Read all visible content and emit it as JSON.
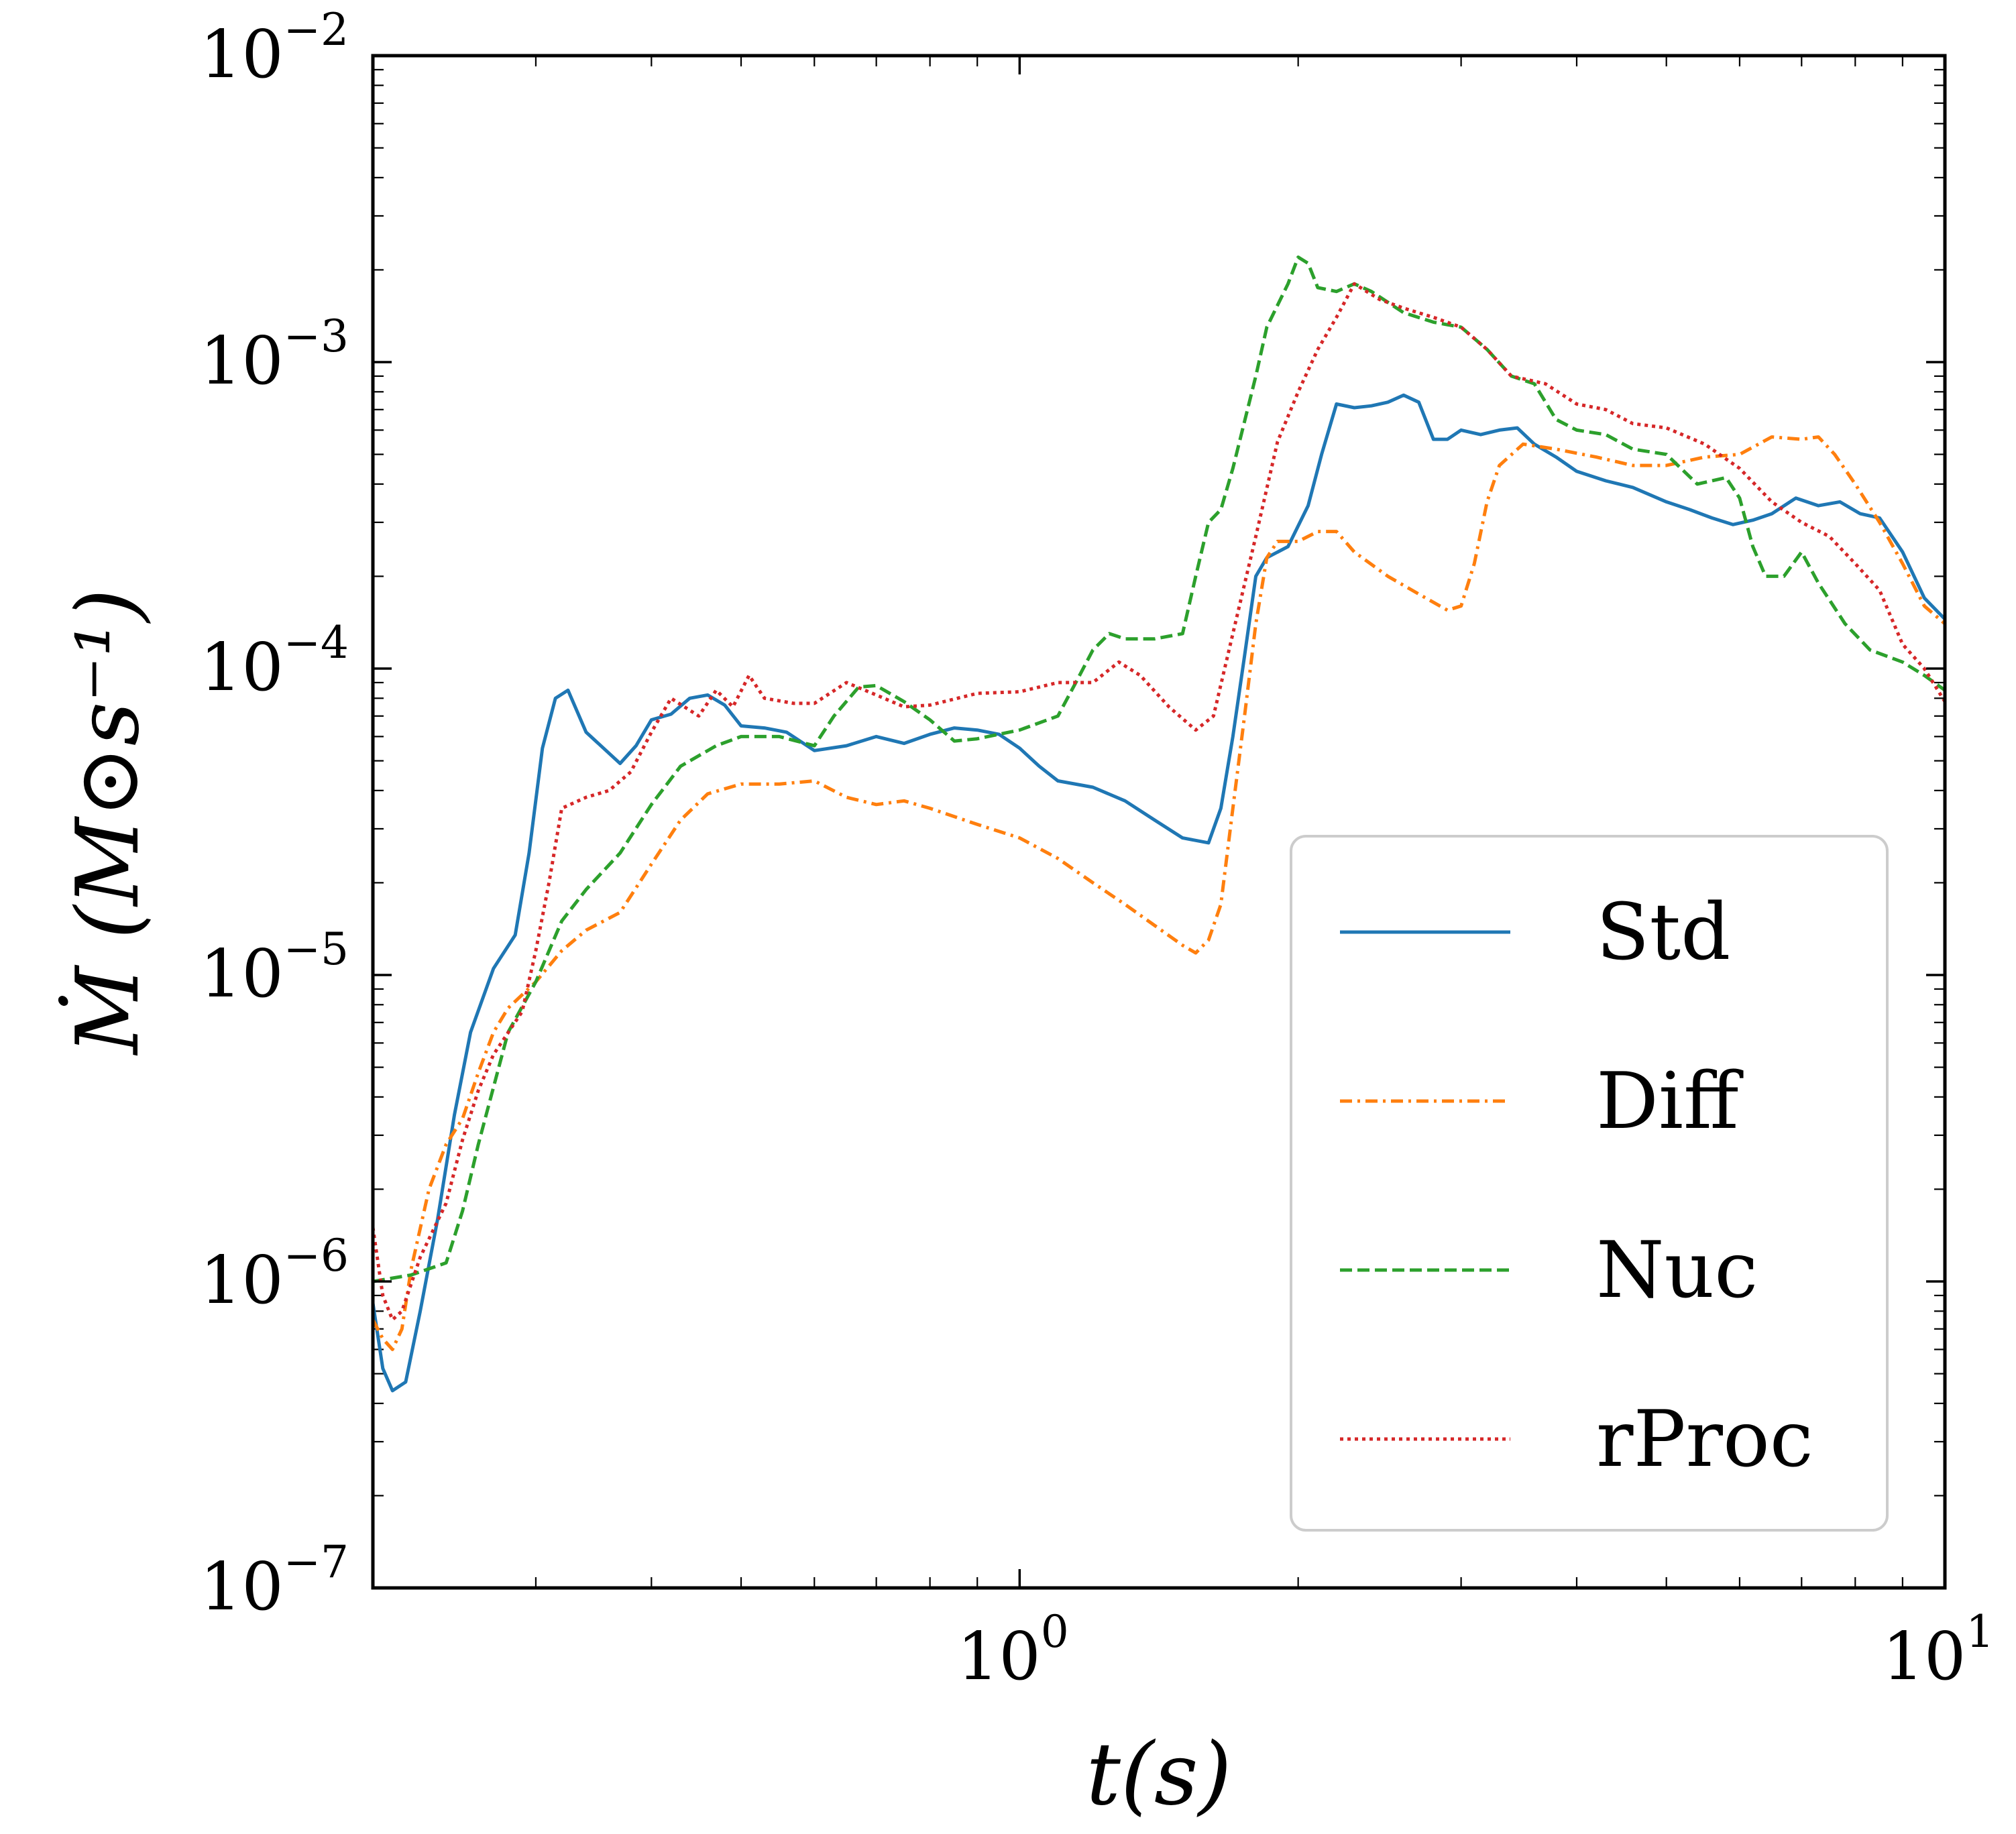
{
  "chart_data": {
    "type": "line",
    "xlabel": "t(s)",
    "ylabel": "Ṁ (M⊙s⁻¹)",
    "xscale": "log",
    "yscale": "log",
    "xlim": [
      0.2,
      10
    ],
    "ylim": [
      1e-07,
      0.01
    ],
    "x_ticks": [
      {
        "base": "10",
        "exp": "0",
        "value": 1
      },
      {
        "base": "10",
        "exp": "1",
        "value": 10
      }
    ],
    "y_ticks": [
      {
        "base": "10",
        "exp": "−7",
        "value": 1e-07
      },
      {
        "base": "10",
        "exp": "−6",
        "value": 1e-06
      },
      {
        "base": "10",
        "exp": "−5",
        "value": 1e-05
      },
      {
        "base": "10",
        "exp": "−4",
        "value": 0.0001
      },
      {
        "base": "10",
        "exp": "−3",
        "value": 0.001
      },
      {
        "base": "10",
        "exp": "−2",
        "value": 0.01
      }
    ],
    "grid": false,
    "legend_position": "lower-right",
    "series": [
      {
        "name": "Std",
        "color": "#1f77b4",
        "style": "solid",
        "points": [
          [
            0.2,
            8.5e-07
          ],
          [
            0.205,
            5.2e-07
          ],
          [
            0.21,
            4.4e-07
          ],
          [
            0.217,
            4.7e-07
          ],
          [
            0.225,
            8e-07
          ],
          [
            0.235,
            1.6e-06
          ],
          [
            0.245,
            3.5e-06
          ],
          [
            0.255,
            6.5e-06
          ],
          [
            0.27,
            1.05e-05
          ],
          [
            0.285,
            1.35e-05
          ],
          [
            0.295,
            2.5e-05
          ],
          [
            0.305,
            5.5e-05
          ],
          [
            0.315,
            8e-05
          ],
          [
            0.325,
            8.5e-05
          ],
          [
            0.34,
            6.2e-05
          ],
          [
            0.355,
            5.5e-05
          ],
          [
            0.37,
            4.9e-05
          ],
          [
            0.385,
            5.6e-05
          ],
          [
            0.4,
            6.8e-05
          ],
          [
            0.42,
            7.1e-05
          ],
          [
            0.44,
            8e-05
          ],
          [
            0.46,
            8.2e-05
          ],
          [
            0.48,
            7.6e-05
          ],
          [
            0.5,
            6.5e-05
          ],
          [
            0.53,
            6.4e-05
          ],
          [
            0.56,
            6.2e-05
          ],
          [
            0.6,
            5.4e-05
          ],
          [
            0.65,
            5.6e-05
          ],
          [
            0.7,
            6e-05
          ],
          [
            0.75,
            5.7e-05
          ],
          [
            0.8,
            6.1e-05
          ],
          [
            0.85,
            6.4e-05
          ],
          [
            0.9,
            6.3e-05
          ],
          [
            0.95,
            6.1e-05
          ],
          [
            1.0,
            5.5e-05
          ],
          [
            1.05,
            4.8e-05
          ],
          [
            1.1,
            4.3e-05
          ],
          [
            1.2,
            4.1e-05
          ],
          [
            1.3,
            3.7e-05
          ],
          [
            1.4,
            3.2e-05
          ],
          [
            1.5,
            2.8e-05
          ],
          [
            1.6,
            2.7e-05
          ],
          [
            1.65,
            3.5e-05
          ],
          [
            1.7,
            6e-05
          ],
          [
            1.75,
            0.00011
          ],
          [
            1.8,
            0.0002
          ],
          [
            1.85,
            0.00023
          ],
          [
            1.95,
            0.00025
          ],
          [
            2.05,
            0.00034
          ],
          [
            2.12,
            0.0005
          ],
          [
            2.2,
            0.00073
          ],
          [
            2.3,
            0.00071
          ],
          [
            2.4,
            0.00072
          ],
          [
            2.5,
            0.00074
          ],
          [
            2.6,
            0.00078
          ],
          [
            2.7,
            0.00074
          ],
          [
            2.8,
            0.00056
          ],
          [
            2.9,
            0.00056
          ],
          [
            3.0,
            0.0006
          ],
          [
            3.15,
            0.00058
          ],
          [
            3.3,
            0.0006
          ],
          [
            3.45,
            0.00061
          ],
          [
            3.6,
            0.00054
          ],
          [
            3.8,
            0.00049
          ],
          [
            4.0,
            0.00044
          ],
          [
            4.3,
            0.00041
          ],
          [
            4.6,
            0.00039
          ],
          [
            5.0,
            0.00035
          ],
          [
            5.3,
            0.00033
          ],
          [
            5.6,
            0.00031
          ],
          [
            5.9,
            0.000295
          ],
          [
            6.2,
            0.000305
          ],
          [
            6.5,
            0.00032
          ],
          [
            6.9,
            0.00036
          ],
          [
            7.3,
            0.00034
          ],
          [
            7.7,
            0.00035
          ],
          [
            8.1,
            0.00032
          ],
          [
            8.5,
            0.00031
          ],
          [
            9.0,
            0.00024
          ],
          [
            9.5,
            0.00017
          ],
          [
            10.0,
            0.000145
          ]
        ]
      },
      {
        "name": "Diff",
        "color": "#ff7f0e",
        "style": "dashdot",
        "points": [
          [
            0.2,
            7.5e-07
          ],
          [
            0.205,
            6.5e-07
          ],
          [
            0.21,
            6e-07
          ],
          [
            0.215,
            7e-07
          ],
          [
            0.22,
            1.1e-06
          ],
          [
            0.23,
            2e-06
          ],
          [
            0.24,
            2.8e-06
          ],
          [
            0.25,
            3.4e-06
          ],
          [
            0.26,
            4.8e-06
          ],
          [
            0.27,
            6.5e-06
          ],
          [
            0.28,
            7.8e-06
          ],
          [
            0.3,
            9.5e-06
          ],
          [
            0.32,
            1.2e-05
          ],
          [
            0.34,
            1.4e-05
          ],
          [
            0.37,
            1.6e-05
          ],
          [
            0.4,
            2.3e-05
          ],
          [
            0.43,
            3.2e-05
          ],
          [
            0.46,
            3.9e-05
          ],
          [
            0.5,
            4.2e-05
          ],
          [
            0.55,
            4.2e-05
          ],
          [
            0.6,
            4.3e-05
          ],
          [
            0.65,
            3.8e-05
          ],
          [
            0.7,
            3.6e-05
          ],
          [
            0.75,
            3.7e-05
          ],
          [
            0.8,
            3.5e-05
          ],
          [
            0.9,
            3.1e-05
          ],
          [
            1.0,
            2.8e-05
          ],
          [
            1.1,
            2.4e-05
          ],
          [
            1.2,
            2e-05
          ],
          [
            1.3,
            1.7e-05
          ],
          [
            1.4,
            1.45e-05
          ],
          [
            1.5,
            1.25e-05
          ],
          [
            1.55,
            1.18e-05
          ],
          [
            1.6,
            1.3e-05
          ],
          [
            1.65,
            1.7e-05
          ],
          [
            1.7,
            3.5e-05
          ],
          [
            1.75,
            7e-05
          ],
          [
            1.8,
            0.00014
          ],
          [
            1.85,
            0.00023
          ],
          [
            1.9,
            0.00026
          ],
          [
            2.0,
            0.00026
          ],
          [
            2.1,
            0.00028
          ],
          [
            2.2,
            0.00028
          ],
          [
            2.3,
            0.00024
          ],
          [
            2.5,
            0.0002
          ],
          [
            2.7,
            0.000175
          ],
          [
            2.9,
            0.000155
          ],
          [
            3.0,
            0.00016
          ],
          [
            3.1,
            0.00022
          ],
          [
            3.2,
            0.00035
          ],
          [
            3.3,
            0.00046
          ],
          [
            3.5,
            0.00054
          ],
          [
            3.8,
            0.00052
          ],
          [
            4.2,
            0.00049
          ],
          [
            4.6,
            0.00046
          ],
          [
            5.0,
            0.00046
          ],
          [
            5.5,
            0.00049
          ],
          [
            6.0,
            0.0005
          ],
          [
            6.5,
            0.00057
          ],
          [
            7.0,
            0.00056
          ],
          [
            7.3,
            0.00057
          ],
          [
            7.6,
            0.0005
          ],
          [
            8.0,
            0.0004
          ],
          [
            8.5,
            0.0003
          ],
          [
            9.0,
            0.00022
          ],
          [
            9.5,
            0.00016
          ],
          [
            10.0,
            0.00014
          ]
        ]
      },
      {
        "name": "Nuc",
        "color": "#2ca02c",
        "style": "dashed",
        "points": [
          [
            0.2,
            1e-06
          ],
          [
            0.22,
            1.05e-06
          ],
          [
            0.24,
            1.15e-06
          ],
          [
            0.25,
            1.7e-06
          ],
          [
            0.26,
            2.8e-06
          ],
          [
            0.27,
            4.3e-06
          ],
          [
            0.28,
            6.5e-06
          ],
          [
            0.3,
            9.5e-06
          ],
          [
            0.32,
            1.5e-05
          ],
          [
            0.34,
            1.9e-05
          ],
          [
            0.37,
            2.5e-05
          ],
          [
            0.4,
            3.6e-05
          ],
          [
            0.43,
            4.8e-05
          ],
          [
            0.47,
            5.6e-05
          ],
          [
            0.5,
            6e-05
          ],
          [
            0.55,
            6e-05
          ],
          [
            0.6,
            5.6e-05
          ],
          [
            0.63,
            7e-05
          ],
          [
            0.67,
            8.7e-05
          ],
          [
            0.7,
            8.8e-05
          ],
          [
            0.75,
            7.8e-05
          ],
          [
            0.8,
            6.8e-05
          ],
          [
            0.85,
            5.8e-05
          ],
          [
            0.9,
            5.9e-05
          ],
          [
            1.0,
            6.3e-05
          ],
          [
            1.1,
            7e-05
          ],
          [
            1.15,
            9e-05
          ],
          [
            1.2,
            0.000115
          ],
          [
            1.25,
            0.00013
          ],
          [
            1.3,
            0.000125
          ],
          [
            1.4,
            0.000125
          ],
          [
            1.5,
            0.00013
          ],
          [
            1.55,
            0.0002
          ],
          [
            1.6,
            0.0003
          ],
          [
            1.65,
            0.00033
          ],
          [
            1.7,
            0.00045
          ],
          [
            1.8,
            0.0009
          ],
          [
            1.85,
            0.0013
          ],
          [
            1.95,
            0.0018
          ],
          [
            2.0,
            0.0022
          ],
          [
            2.05,
            0.0021
          ],
          [
            2.1,
            0.00175
          ],
          [
            2.2,
            0.0017
          ],
          [
            2.3,
            0.0018
          ],
          [
            2.4,
            0.0017
          ],
          [
            2.6,
            0.00145
          ],
          [
            2.8,
            0.00135
          ],
          [
            3.0,
            0.0013
          ],
          [
            3.2,
            0.0011
          ],
          [
            3.4,
            0.0009
          ],
          [
            3.6,
            0.00085
          ],
          [
            3.8,
            0.00065
          ],
          [
            4.0,
            0.0006
          ],
          [
            4.3,
            0.00058
          ],
          [
            4.6,
            0.00052
          ],
          [
            5.0,
            0.0005
          ],
          [
            5.4,
            0.0004
          ],
          [
            5.8,
            0.00042
          ],
          [
            6.0,
            0.00036
          ],
          [
            6.2,
            0.00025
          ],
          [
            6.4,
            0.0002
          ],
          [
            6.7,
            0.0002
          ],
          [
            7.0,
            0.00024
          ],
          [
            7.3,
            0.00019
          ],
          [
            7.8,
            0.00014
          ],
          [
            8.3,
            0.000115
          ],
          [
            9.0,
            0.000105
          ],
          [
            9.5,
            9.5e-05
          ],
          [
            10.0,
            8.5e-05
          ]
        ]
      },
      {
        "name": "rProc",
        "color": "#d62728",
        "style": "dotted",
        "points": [
          [
            0.2,
            1.5e-06
          ],
          [
            0.205,
            9e-07
          ],
          [
            0.21,
            7.5e-07
          ],
          [
            0.215,
            8e-07
          ],
          [
            0.225,
            1.2e-06
          ],
          [
            0.24,
            1.8e-06
          ],
          [
            0.25,
            2.9e-06
          ],
          [
            0.26,
            4.2e-06
          ],
          [
            0.27,
            5.5e-06
          ],
          [
            0.29,
            7.6e-06
          ],
          [
            0.3,
            1.2e-05
          ],
          [
            0.31,
            2e-05
          ],
          [
            0.32,
            3.5e-05
          ],
          [
            0.34,
            3.8e-05
          ],
          [
            0.36,
            4e-05
          ],
          [
            0.38,
            4.6e-05
          ],
          [
            0.4,
            6.2e-05
          ],
          [
            0.42,
            8e-05
          ],
          [
            0.45,
            7e-05
          ],
          [
            0.47,
            8.5e-05
          ],
          [
            0.49,
            7.5e-05
          ],
          [
            0.51,
            9.5e-05
          ],
          [
            0.53,
            8e-05
          ],
          [
            0.57,
            7.7e-05
          ],
          [
            0.6,
            7.7e-05
          ],
          [
            0.65,
            9e-05
          ],
          [
            0.7,
            8.2e-05
          ],
          [
            0.75,
            7.5e-05
          ],
          [
            0.8,
            7.6e-05
          ],
          [
            0.9,
            8.3e-05
          ],
          [
            1.0,
            8.4e-05
          ],
          [
            1.1,
            9e-05
          ],
          [
            1.2,
            9e-05
          ],
          [
            1.28,
            0.000105
          ],
          [
            1.35,
            9.5e-05
          ],
          [
            1.45,
            7.5e-05
          ],
          [
            1.55,
            6.3e-05
          ],
          [
            1.62,
            7e-05
          ],
          [
            1.7,
            0.00013
          ],
          [
            1.8,
            0.00027
          ],
          [
            1.9,
            0.00055
          ],
          [
            2.0,
            0.0008
          ],
          [
            2.1,
            0.0011
          ],
          [
            2.2,
            0.0014
          ],
          [
            2.3,
            0.0018
          ],
          [
            2.45,
            0.0016
          ],
          [
            2.6,
            0.0015
          ],
          [
            2.8,
            0.0014
          ],
          [
            3.0,
            0.0013
          ],
          [
            3.2,
            0.0011
          ],
          [
            3.4,
            0.0009
          ],
          [
            3.7,
            0.00085
          ],
          [
            4.0,
            0.00073
          ],
          [
            4.3,
            0.0007
          ],
          [
            4.6,
            0.00063
          ],
          [
            5.0,
            0.00061
          ],
          [
            5.5,
            0.00054
          ],
          [
            6.0,
            0.00045
          ],
          [
            6.5,
            0.00035
          ],
          [
            7.0,
            0.0003
          ],
          [
            7.5,
            0.00027
          ],
          [
            8.0,
            0.00022
          ],
          [
            8.5,
            0.00018
          ],
          [
            9.0,
            0.00012
          ],
          [
            9.5,
            0.0001
          ],
          [
            10.0,
            7.8e-05
          ]
        ]
      }
    ]
  }
}
